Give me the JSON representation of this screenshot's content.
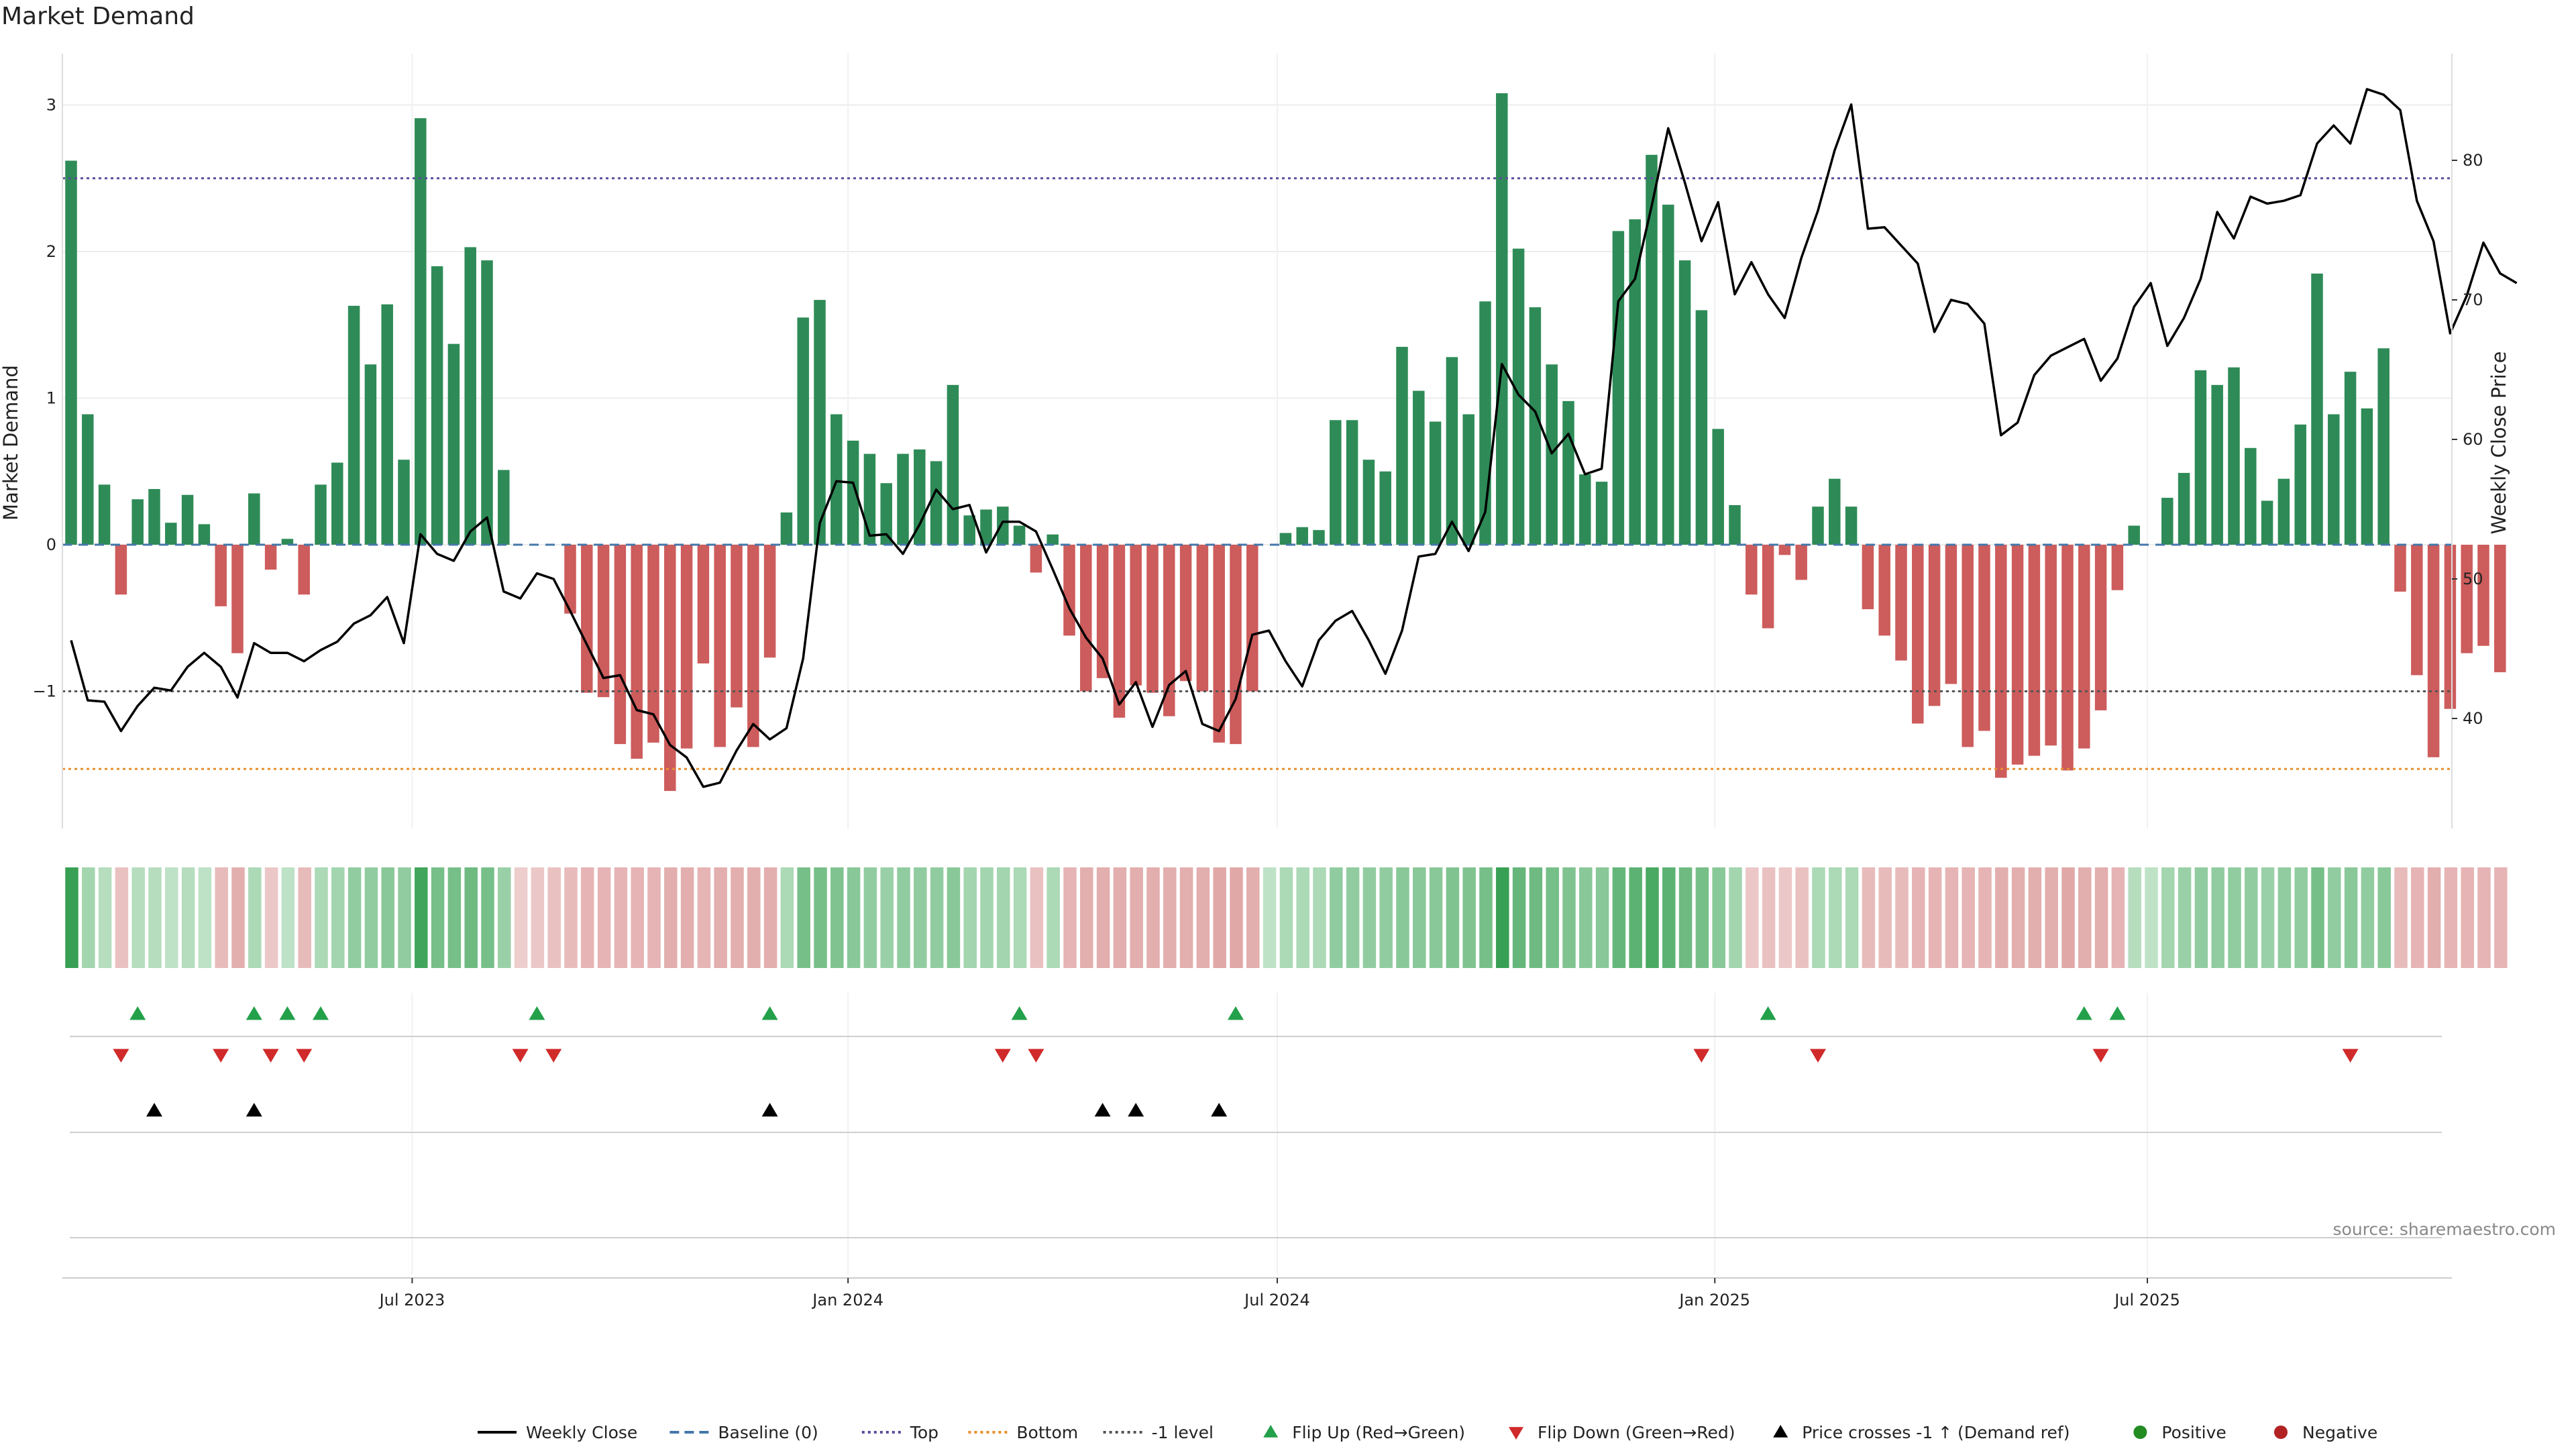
{
  "title": "Market Demand",
  "source": "source: sharemaestro.com",
  "colors": {
    "positive": "#2e8b57",
    "negative": "#cd5c5c",
    "price": "#000000",
    "top_line": "#5a4e9a",
    "bottom_line": "#e8902e",
    "minus1_line": "#555555",
    "baseline": "#4477aa",
    "flip_up": "#23a04a",
    "flip_down": "#d02a2a",
    "cross_marker": "#000000",
    "legend_positive": "#228b22",
    "legend_negative": "#b22222"
  },
  "chart_data": {
    "type": "bar+line",
    "title": "Market Demand",
    "y_left_label": "Market Demand",
    "y_right_label": "Weekly Close Price",
    "y_left_range": [
      -1.95,
      3.4
    ],
    "y_right_range": [
      32,
      88
    ],
    "y_left_ticks": [
      -1,
      0,
      1,
      2,
      3
    ],
    "y_left_tick_labels": [
      "−1",
      "0",
      "1",
      "2",
      "3"
    ],
    "y_right_ticks": [
      40,
      50,
      60,
      70,
      80
    ],
    "y_right_tick_labels": [
      "40",
      "50",
      "60",
      "70",
      "80"
    ],
    "reference_levels": {
      "top": 2.5,
      "bottom": -1.53,
      "minus1": -1.0,
      "baseline": 0
    },
    "x_tick_labels": [
      {
        "label": "Jul 2023",
        "week": 20.5
      },
      {
        "label": "Jan 2024",
        "week": 46.7
      },
      {
        "label": "Jul 2024",
        "week": 72.5
      },
      {
        "label": "Jan 2025",
        "week": 98.8
      },
      {
        "label": "Jul 2025",
        "week": 124.8
      }
    ],
    "demand": [
      2.62,
      0.89,
      0.41,
      -0.34,
      0.31,
      0.38,
      0.15,
      0.34,
      0.14,
      -0.42,
      -0.74,
      0.35,
      -0.17,
      0.04,
      -0.34,
      0.41,
      0.56,
      1.63,
      1.23,
      1.64,
      0.58,
      2.91,
      1.9,
      1.37,
      2.03,
      1.94,
      0.51,
      0.0,
      0,
      0,
      -0.47,
      -1.01,
      -1.04,
      -1.36,
      -1.46,
      -1.35,
      -1.68,
      -1.39,
      -0.81,
      -1.38,
      -1.11,
      -1.38,
      -0.77,
      0.22,
      1.55,
      1.67,
      0.89,
      0.71,
      0.62,
      0.42,
      0.62,
      0.65,
      0.57,
      1.09,
      0.2,
      0.24,
      0.26,
      0.13,
      -0.19,
      0.07,
      -0.62,
      -1.0,
      -0.91,
      -1.18,
      -0.96,
      -1.01,
      -1.17,
      -0.93,
      -1.0,
      -1.35,
      -1.36,
      -1.0,
      0,
      0.08,
      0.12,
      0.1,
      0.85,
      0.85,
      0.58,
      0.5,
      1.35,
      1.05,
      0.84,
      1.28,
      0.89,
      1.66,
      3.08,
      2.02,
      1.62,
      1.23,
      0.98,
      0.48,
      0.43,
      2.14,
      2.22,
      2.66,
      2.32,
      1.94,
      1.6,
      0.79,
      0.27,
      -0.34,
      -0.57,
      -0.07,
      -0.24,
      0.26,
      0.45,
      0.26,
      -0.44,
      -0.62,
      -0.79,
      -1.22,
      -1.1,
      -0.95,
      -1.38,
      -1.27,
      -1.59,
      -1.5,
      -1.44,
      -1.37,
      -1.54,
      -1.39,
      -1.13,
      -0.31,
      0.13,
      0.0,
      0.32,
      0.49,
      1.19,
      1.09,
      1.21,
      0.66,
      0.3,
      0.45,
      0.82,
      1.85,
      0.89,
      1.18,
      0.93,
      1.34,
      -0.32,
      -0.89,
      -1.45,
      -1.12,
      -0.74,
      -0.69,
      -0.87
    ],
    "strip_intensity": [
      0.95,
      0.35,
      0.25,
      -0.25,
      0.25,
      0.25,
      0.2,
      0.25,
      0.2,
      -0.3,
      -0.4,
      0.3,
      -0.2,
      0.2,
      -0.3,
      0.3,
      0.35,
      0.45,
      0.45,
      0.5,
      0.45,
      0.9,
      0.6,
      0.6,
      0.65,
      0.6,
      0.4,
      -0.15,
      -0.2,
      -0.25,
      -0.3,
      -0.35,
      -0.35,
      -0.35,
      -0.35,
      -0.35,
      -0.4,
      -0.4,
      -0.35,
      -0.4,
      -0.4,
      -0.4,
      -0.4,
      0.3,
      0.6,
      0.6,
      0.55,
      0.5,
      0.45,
      0.4,
      0.45,
      0.45,
      0.45,
      0.5,
      0.35,
      0.35,
      0.35,
      0.3,
      -0.25,
      0.3,
      -0.35,
      -0.4,
      -0.4,
      -0.4,
      -0.4,
      -0.4,
      -0.4,
      -0.4,
      -0.4,
      -0.45,
      -0.45,
      -0.4,
      0.2,
      0.3,
      0.3,
      0.3,
      0.45,
      0.45,
      0.45,
      0.45,
      0.5,
      0.5,
      0.5,
      0.55,
      0.55,
      0.6,
      0.95,
      0.7,
      0.65,
      0.6,
      0.55,
      0.5,
      0.5,
      0.7,
      0.75,
      0.85,
      0.75,
      0.65,
      0.6,
      0.5,
      0.35,
      -0.2,
      -0.25,
      -0.2,
      -0.25,
      0.3,
      0.3,
      0.3,
      -0.3,
      -0.3,
      -0.3,
      -0.35,
      -0.35,
      -0.35,
      -0.35,
      -0.35,
      -0.4,
      -0.4,
      -0.4,
      -0.4,
      -0.45,
      -0.4,
      -0.4,
      -0.35,
      0.25,
      0.2,
      0.35,
      0.4,
      0.45,
      0.45,
      0.45,
      0.45,
      0.4,
      0.45,
      0.45,
      0.6,
      0.45,
      0.5,
      0.45,
      0.5,
      -0.3,
      -0.35,
      -0.4,
      -0.35,
      -0.35,
      -0.35,
      -0.35
    ],
    "price": [
      [
        0,
        45.6
      ],
      [
        1,
        41.3
      ],
      [
        2,
        41.2
      ],
      [
        3,
        39.1
      ],
      [
        4,
        40.9
      ],
      [
        5,
        42.2
      ],
      [
        6,
        42.0
      ],
      [
        7,
        43.7
      ],
      [
        8,
        44.7
      ],
      [
        9,
        43.7
      ],
      [
        10,
        41.5
      ],
      [
        11,
        45.4
      ],
      [
        12,
        44.7
      ],
      [
        13,
        44.7
      ],
      [
        14,
        44.1
      ],
      [
        15,
        44.9
      ],
      [
        16,
        45.5
      ],
      [
        17,
        46.8
      ],
      [
        18,
        47.4
      ],
      [
        19,
        48.7
      ],
      [
        20,
        45.4
      ],
      [
        21,
        53.2
      ],
      [
        22,
        51.8
      ],
      [
        23,
        51.3
      ],
      [
        24,
        53.4
      ],
      [
        25,
        54.4
      ],
      [
        26,
        49.1
      ],
      [
        27,
        48.6
      ],
      [
        28,
        50.4
      ],
      [
        29,
        50.0
      ],
      [
        30,
        47.7
      ],
      [
        31,
        45.3
      ],
      [
        32,
        42.9
      ],
      [
        33,
        43.1
      ],
      [
        34,
        40.6
      ],
      [
        35,
        40.3
      ],
      [
        36,
        38.1
      ],
      [
        37,
        37.2
      ],
      [
        38,
        35.1
      ],
      [
        39,
        35.4
      ],
      [
        40,
        37.7
      ],
      [
        41,
        39.6
      ],
      [
        42,
        38.5
      ],
      [
        43,
        39.3
      ],
      [
        44,
        44.3
      ],
      [
        45,
        54.0
      ],
      [
        46,
        57.0
      ],
      [
        47,
        56.9
      ],
      [
        48,
        53.1
      ],
      [
        49,
        53.2
      ],
      [
        50,
        51.8
      ],
      [
        51,
        53.9
      ],
      [
        52,
        56.4
      ],
      [
        53,
        55.0
      ],
      [
        54,
        55.3
      ],
      [
        55,
        51.9
      ],
      [
        56,
        54.1
      ],
      [
        57,
        54.1
      ],
      [
        58,
        53.4
      ],
      [
        59,
        50.7
      ],
      [
        60,
        47.9
      ],
      [
        61,
        45.8
      ],
      [
        62,
        44.3
      ],
      [
        62.5,
        42.7
      ],
      [
        63,
        41.0
      ],
      [
        64,
        42.6
      ],
      [
        65,
        39.4
      ],
      [
        66,
        42.4
      ],
      [
        67,
        43.4
      ],
      [
        68,
        39.6
      ],
      [
        69,
        39.1
      ],
      [
        70,
        41.4
      ],
      [
        71,
        46.0
      ],
      [
        72,
        46.3
      ],
      [
        73,
        44.1
      ],
      [
        74,
        42.3
      ],
      [
        75,
        45.6
      ],
      [
        76,
        47.0
      ],
      [
        77,
        47.7
      ],
      [
        78,
        45.6
      ],
      [
        79,
        43.2
      ],
      [
        80,
        46.3
      ],
      [
        81,
        51.6
      ],
      [
        82,
        51.8
      ],
      [
        83,
        54.1
      ],
      [
        84,
        52.0
      ],
      [
        85,
        54.8
      ],
      [
        86,
        65.4
      ],
      [
        87,
        63.2
      ],
      [
        88,
        62.0
      ],
      [
        89,
        59.0
      ],
      [
        90,
        60.4
      ],
      [
        91,
        57.5
      ],
      [
        92,
        57.9
      ],
      [
        93,
        69.9
      ],
      [
        94,
        71.5
      ],
      [
        95,
        76.7
      ],
      [
        96,
        82.3
      ],
      [
        97,
        78.4
      ],
      [
        98,
        74.2
      ],
      [
        99,
        77.0
      ],
      [
        100,
        70.4
      ],
      [
        101,
        72.7
      ],
      [
        102,
        70.4
      ],
      [
        103,
        68.7
      ],
      [
        104,
        73.0
      ],
      [
        105,
        76.4
      ],
      [
        106,
        80.7
      ],
      [
        107,
        84.0
      ],
      [
        108,
        75.1
      ],
      [
        109,
        75.2
      ],
      [
        110,
        73.9
      ],
      [
        111,
        72.6
      ],
      [
        112,
        67.7
      ],
      [
        113,
        70.0
      ],
      [
        114,
        69.7
      ],
      [
        115,
        68.3
      ],
      [
        116,
        60.3
      ],
      [
        117,
        61.2
      ],
      [
        118,
        64.6
      ],
      [
        119,
        66.0
      ],
      [
        120,
        66.6
      ],
      [
        121,
        67.2
      ],
      [
        122,
        64.2
      ],
      [
        123,
        65.8
      ],
      [
        124,
        69.5
      ],
      [
        125,
        71.2
      ],
      [
        126,
        66.7
      ],
      [
        127,
        68.7
      ],
      [
        128,
        71.5
      ],
      [
        129,
        76.3
      ],
      [
        130,
        74.4
      ],
      [
        131,
        77.4
      ],
      [
        132,
        76.9
      ],
      [
        133,
        77.1
      ],
      [
        134,
        77.5
      ],
      [
        135,
        81.2
      ],
      [
        136,
        82.5
      ],
      [
        137,
        81.2
      ],
      [
        138,
        85.1
      ],
      [
        139,
        84.7
      ],
      [
        140,
        83.6
      ],
      [
        141,
        77.1
      ],
      [
        142,
        74.2
      ],
      [
        143,
        67.6
      ],
      [
        144,
        70.3
      ],
      [
        145,
        74.1
      ],
      [
        146,
        71.9
      ],
      [
        147,
        71.2
      ]
    ],
    "flip_up_weeks": [
      4,
      11,
      13,
      15,
      28,
      42,
      57,
      70,
      102,
      121,
      123
    ],
    "flip_down_weeks": [
      3,
      9,
      12,
      14,
      27,
      29,
      56,
      58,
      98,
      105,
      122,
      137
    ],
    "price_cross_weeks": [
      5,
      11,
      42,
      62,
      64,
      69
    ],
    "legend": [
      "Weekly Close",
      "Baseline (0)",
      "Top",
      "Bottom",
      "-1 level",
      "Flip Up (Red→Green)",
      "Flip Down (Green→Red)",
      "Price crosses -1 ↑ (Demand ref)",
      "Positive",
      "Negative"
    ]
  }
}
